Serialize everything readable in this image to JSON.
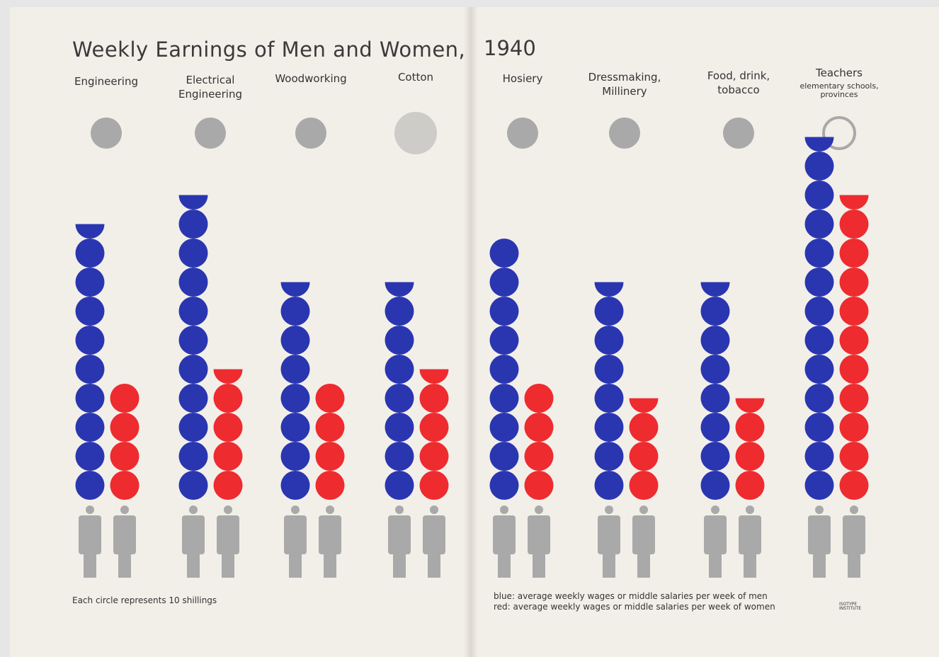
{
  "chart_data": {
    "type": "pictogram",
    "title": "Weekly Earnings of Men and Women,",
    "year": "1940",
    "categories": [
      "Engineering",
      "Electrical\nEngineering",
      "Woodworking",
      "Cotton",
      "Hosiery",
      "Dressmaking,\nMillinery",
      "Food, drink,\ntobacco",
      "Teachers"
    ],
    "category_notes": {
      "Teachers": "elementary schools,\nprovinces"
    },
    "series": [
      {
        "name": "blue: average weekly wages or middle salaries per week of men",
        "color": "#2a36b0",
        "values": [
          9.5,
          10.5,
          7.5,
          7.5,
          9,
          7.5,
          7.5,
          12.5
        ]
      },
      {
        "name": "red: average  weekly wages or middle salaries per week of women",
        "color": "#ee2b2f",
        "values": [
          4,
          4.5,
          4,
          4.5,
          4,
          3.5,
          3.5,
          10.5
        ]
      }
    ],
    "unit_note": "Each circle represents 10 shillings",
    "logo": "ISOTYPE\nINSTITUTE"
  }
}
